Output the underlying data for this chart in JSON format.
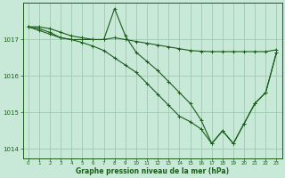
{
  "xlabel": "Graphe pression niveau de la mer (hPa)",
  "bg_color": "#c8e8d8",
  "grid_color": "#a0c8b0",
  "line_color": "#1a5c1a",
  "line1": {
    "x": [
      0,
      1,
      2,
      3,
      4,
      5,
      6,
      7,
      8,
      9,
      10,
      11,
      12,
      13,
      14,
      15,
      16,
      17,
      18,
      19,
      20,
      21,
      22,
      23
    ],
    "y": [
      1017.35,
      1017.35,
      1017.3,
      1017.2,
      1017.1,
      1017.05,
      1017.0,
      1017.0,
      1017.05,
      1017.0,
      1016.95,
      1016.9,
      1016.85,
      1016.8,
      1016.75,
      1016.7,
      1016.68,
      1016.67,
      1016.67,
      1016.67,
      1016.67,
      1016.67,
      1016.67,
      1016.72
    ]
  },
  "line2": {
    "x": [
      0,
      1,
      2,
      3,
      4,
      5,
      6,
      7,
      8,
      9,
      10,
      11,
      12,
      13,
      14,
      15,
      16,
      17,
      18,
      19,
      20,
      21,
      22,
      23
    ],
    "y": [
      1017.35,
      1017.3,
      1017.2,
      1017.05,
      1017.0,
      1017.0,
      1017.0,
      1017.0,
      1017.85,
      1017.1,
      1016.65,
      1016.4,
      1016.15,
      1015.85,
      1015.55,
      1015.25,
      1014.8,
      1014.15,
      1014.5,
      1014.15,
      1014.7,
      1015.25,
      1015.55,
      1016.65
    ]
  },
  "line3": {
    "x": [
      0,
      1,
      2,
      3,
      4,
      5,
      6,
      7,
      8,
      9,
      10,
      11,
      12,
      13,
      14,
      15,
      16,
      17,
      18,
      19,
      20,
      21,
      22,
      23
    ],
    "y": [
      1017.35,
      1017.25,
      1017.15,
      1017.05,
      1017.0,
      1016.92,
      1016.82,
      1016.7,
      1016.5,
      1016.3,
      1016.1,
      1015.8,
      1015.5,
      1015.2,
      1014.9,
      1014.75,
      1014.55,
      1014.15,
      1014.5,
      1014.15,
      1014.7,
      1015.25,
      1015.55,
      1016.65
    ]
  },
  "ylim": [
    1013.75,
    1018.0
  ],
  "yticks": [
    1014,
    1015,
    1016,
    1017
  ],
  "xlim": [
    -0.5,
    23.5
  ],
  "xticks": [
    0,
    1,
    2,
    3,
    4,
    5,
    6,
    7,
    8,
    9,
    10,
    11,
    12,
    13,
    14,
    15,
    16,
    17,
    18,
    19,
    20,
    21,
    22,
    23
  ]
}
